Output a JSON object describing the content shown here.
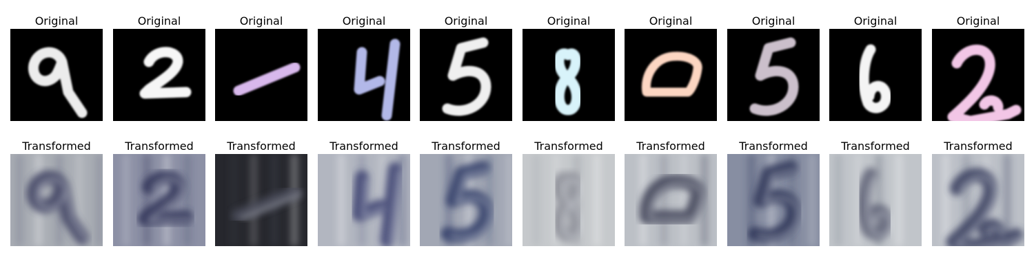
{
  "figure": {
    "rows": [
      {
        "name": "original",
        "panels": [
          {
            "title": "Original",
            "digit": "9",
            "stroke_color": "#ececec"
          },
          {
            "title": "Original",
            "digit": "2",
            "stroke_color": "#f6f6f6"
          },
          {
            "title": "Original",
            "digit": "1",
            "stroke_color": "#d8b8ec"
          },
          {
            "title": "Original",
            "digit": "4",
            "stroke_color": "#b2b8e8"
          },
          {
            "title": "Original",
            "digit": "5",
            "stroke_color": "#efefef"
          },
          {
            "title": "Original",
            "digit": "8",
            "stroke_color": "#d8f3fa"
          },
          {
            "title": "Original",
            "digit": "0",
            "stroke_color": "#fcd6c2"
          },
          {
            "title": "Original",
            "digit": "5",
            "stroke_color": "#cbbfcb"
          },
          {
            "title": "Original",
            "digit": "6",
            "stroke_color": "#f4f4f4"
          },
          {
            "title": "Original",
            "digit": "2",
            "stroke_color": "#f2c6e6"
          }
        ]
      },
      {
        "name": "transformed",
        "panels": [
          {
            "title": "Transformed",
            "digit": "9",
            "bg_color": "#a9adb4",
            "stroke_color": "#3d4160"
          },
          {
            "title": "Transformed",
            "digit": "2",
            "bg_color": "#8c90a5",
            "stroke_color": "#2e3256"
          },
          {
            "title": "Transformed",
            "digit": "1",
            "bg_color": "#26272d",
            "stroke_color": "#4b4e5c"
          },
          {
            "title": "Transformed",
            "digit": "4",
            "bg_color": "#b2b6c0",
            "stroke_color": "#3b4170"
          },
          {
            "title": "Transformed",
            "digit": "5",
            "bg_color": "#a2a7b4",
            "stroke_color": "#2f3a66"
          },
          {
            "title": "Transformed",
            "digit": "8",
            "bg_color": "#c6c9cc",
            "stroke_color": "#8d8f98"
          },
          {
            "title": "Transformed",
            "digit": "0",
            "bg_color": "#bcc0c6",
            "stroke_color": "#3c3f55"
          },
          {
            "title": "Transformed",
            "digit": "5",
            "bg_color": "#878ea2",
            "stroke_color": "#2a3055"
          },
          {
            "title": "Transformed",
            "digit": "6",
            "bg_color": "#c1c5ca",
            "stroke_color": "#5d6074"
          },
          {
            "title": "Transformed",
            "digit": "2",
            "bg_color": "#bcc0c7",
            "stroke_color": "#343a5c"
          }
        ]
      }
    ]
  }
}
